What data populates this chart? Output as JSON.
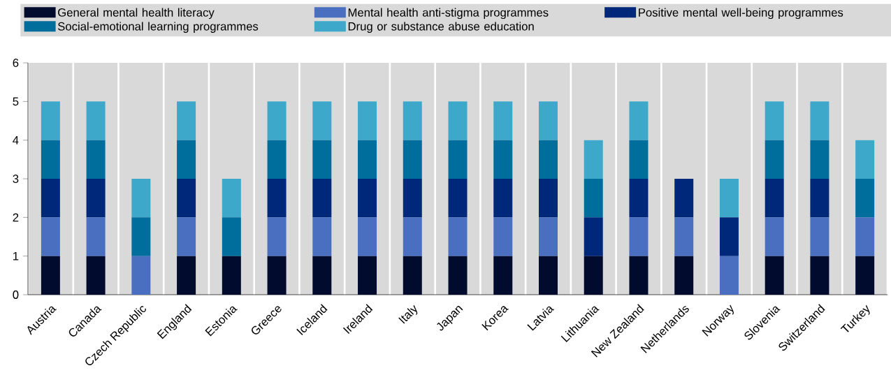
{
  "chart_data": {
    "type": "bar",
    "stacked": true,
    "categories": [
      "Austria",
      "Canada",
      "Czech Republic",
      "England",
      "Estonia",
      "Greece",
      "Iceland",
      "Ireland",
      "Italy",
      "Japan",
      "Korea",
      "Latvia",
      "Lithuania",
      "New Zealand",
      "Netherlands",
      "Norway",
      "Slovenia",
      "Switzerland",
      "Turkey"
    ],
    "series": [
      {
        "name": "General mental health literacy",
        "color": "#000b2e",
        "values": [
          1,
          1,
          0,
          1,
          1,
          1,
          1,
          1,
          1,
          1,
          1,
          1,
          1,
          1,
          1,
          0,
          1,
          1,
          1
        ]
      },
      {
        "name": "Mental health anti-stigma programmes",
        "color": "#4a6fc1",
        "values": [
          1,
          1,
          1,
          1,
          0,
          1,
          1,
          1,
          1,
          1,
          1,
          1,
          0,
          1,
          1,
          1,
          1,
          1,
          1
        ]
      },
      {
        "name": "Positive mental well-being programmes",
        "color": "#00287a",
        "values": [
          1,
          1,
          0,
          1,
          0,
          1,
          1,
          1,
          1,
          1,
          1,
          1,
          1,
          1,
          1,
          1,
          1,
          1,
          0
        ]
      },
      {
        "name": "Social-emotional learning programmes",
        "color": "#006e9c",
        "values": [
          1,
          1,
          1,
          1,
          1,
          1,
          1,
          1,
          1,
          1,
          1,
          1,
          1,
          1,
          0,
          0,
          1,
          1,
          1
        ]
      },
      {
        "name": "Drug or substance abuse education",
        "color": "#3ea8cb",
        "values": [
          1,
          1,
          1,
          1,
          1,
          1,
          1,
          1,
          1,
          1,
          1,
          1,
          1,
          1,
          0,
          1,
          1,
          1,
          1
        ]
      }
    ],
    "ylim": [
      0,
      6
    ],
    "yticks": [
      0,
      1,
      2,
      3,
      4,
      5,
      6
    ],
    "grid": "x",
    "legend": "top"
  }
}
